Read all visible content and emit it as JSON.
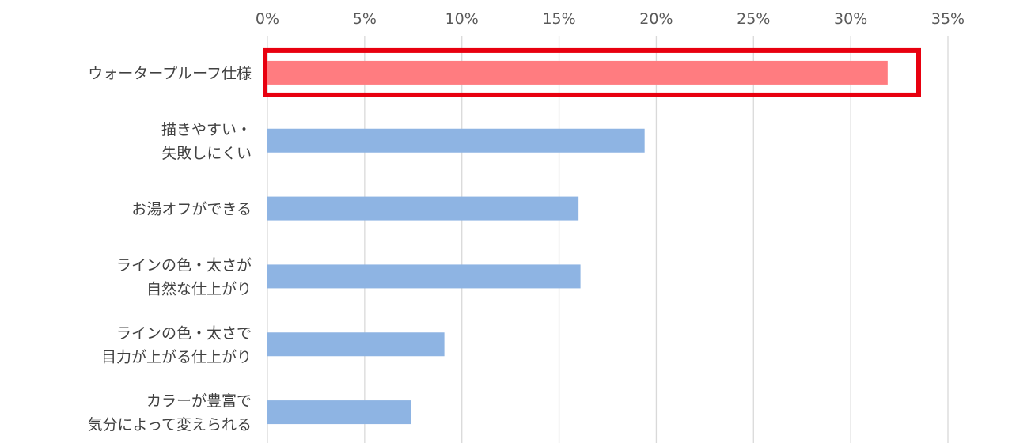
{
  "chart_data": {
    "type": "bar",
    "orientation": "horizontal",
    "title": "",
    "xlabel": "",
    "ylabel": "",
    "xlim": [
      0,
      35
    ],
    "x_ticks": [
      "0%",
      "5%",
      "10%",
      "15%",
      "20%",
      "25%",
      "30%",
      "35%"
    ],
    "grid": "vertical",
    "legend": "none",
    "categories": [
      [
        "ウォータープルーフ仕様"
      ],
      [
        "描きやすい・",
        "失敗しにくい"
      ],
      [
        "お湯オフができる"
      ],
      [
        "ラインの色・太さが",
        "自然な仕上がり"
      ],
      [
        "ラインの色・太さで",
        "目力が上がる仕上がり"
      ],
      [
        "カラーが豊富で",
        "気分によって変えられる"
      ]
    ],
    "values": [
      31.9,
      19.4,
      16.0,
      16.1,
      9.1,
      7.4
    ],
    "highlight_index": 0,
    "colors": {
      "highlight_bar": "#ff7c80",
      "bar": "#8eb4e3",
      "highlight_box": "#e8000f",
      "grid": "#d9d9d9"
    }
  }
}
